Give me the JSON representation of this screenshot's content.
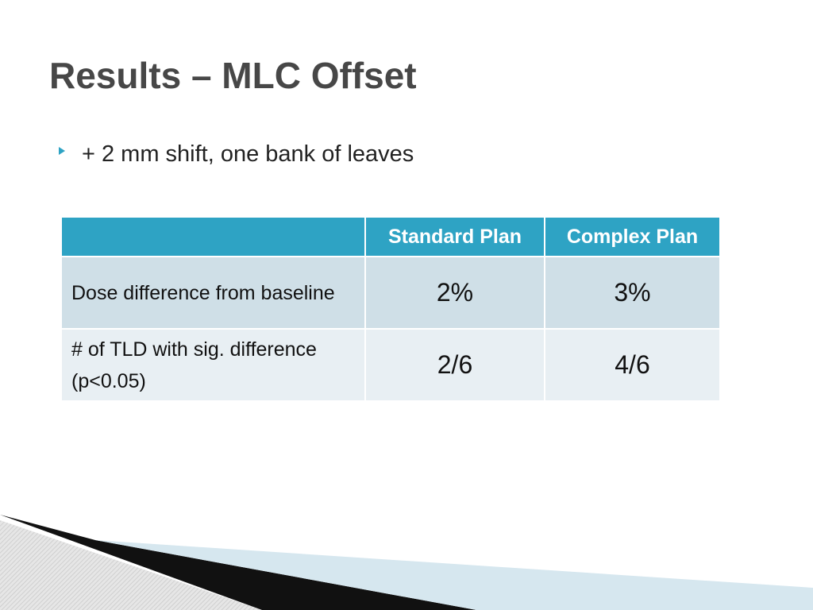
{
  "title": "Results – MLC Offset",
  "bullets": [
    "+ 2 mm shift, one bank of leaves"
  ],
  "table": {
    "columns": [
      "Standard Plan",
      "Complex Plan"
    ],
    "rows": [
      [
        "Dose difference from baseline",
        "2%",
        "3%"
      ],
      [
        "# of TLD with sig. difference (p<0.05)",
        "2/6",
        "4/6"
      ]
    ]
  }
}
